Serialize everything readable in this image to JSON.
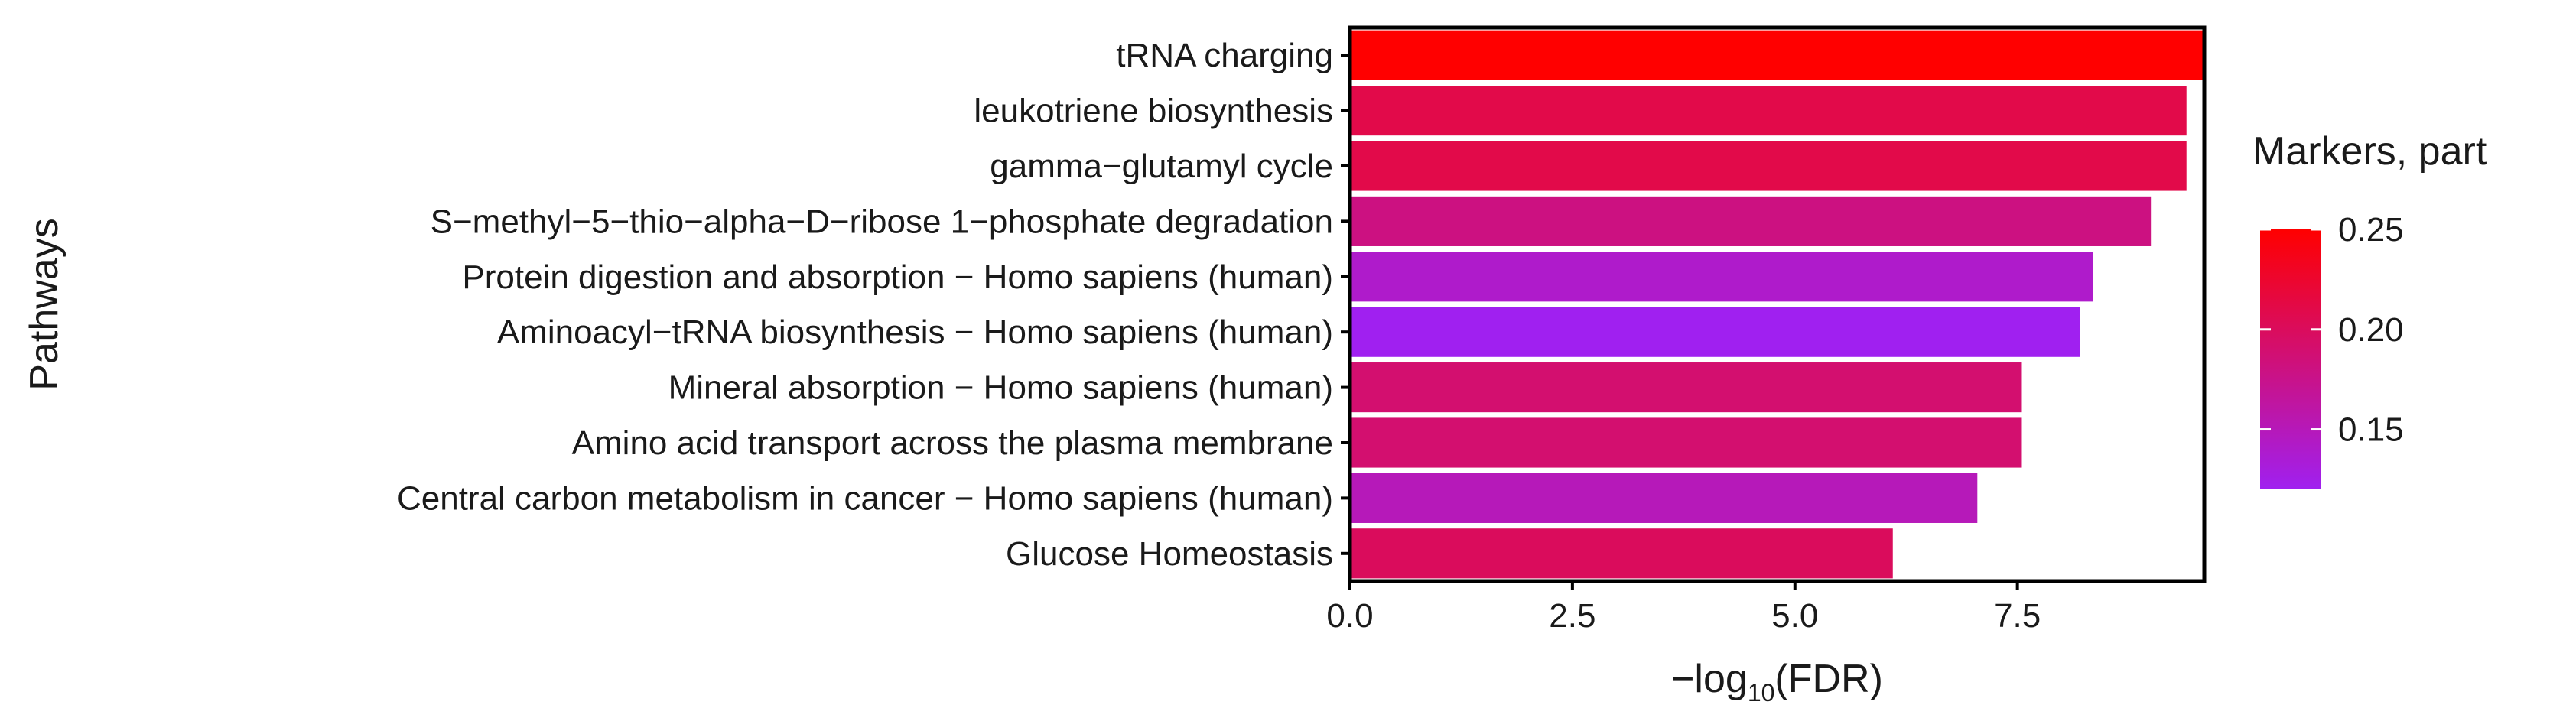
{
  "chart_data": {
    "type": "bar",
    "orientation": "horizontal",
    "categories": [
      "tRNA charging",
      "leukotriene biosynthesis",
      "gamma−glutamyl cycle",
      "S−methyl−5−thio−alpha−D−ribose 1−phosphate degradation",
      "Protein digestion and absorption − Homo sapiens (human)",
      "Aminoacyl−tRNA biosynthesis − Homo sapiens (human)",
      "Mineral absorption − Homo sapiens (human)",
      "Amino acid transport across the plasma membrane",
      "Central carbon metabolism in cancer − Homo sapiens (human)",
      "Glucose Homeostasis"
    ],
    "values": [
      9.6,
      9.4,
      9.4,
      9.0,
      8.35,
      8.2,
      7.55,
      7.55,
      7.05,
      6.1
    ],
    "color_values": [
      0.25,
      0.21,
      0.21,
      0.18,
      0.14,
      0.12,
      0.19,
      0.19,
      0.15,
      0.2
    ],
    "xlabel_main": "−log",
    "xlabel_sub": "10",
    "xlabel_tail": "(FDR)",
    "ylabel": "Pathways",
    "xlim": [
      0,
      9.6
    ],
    "xticks": [
      0,
      2.5,
      5,
      7.5
    ],
    "xtick_labels": [
      "0.0",
      "2.5",
      "5.0",
      "7.5"
    ],
    "grid": false,
    "legend": {
      "title": "Markers, part",
      "placement": "right",
      "range": [
        0.12,
        0.25
      ],
      "ticks": [
        0.15,
        0.2,
        0.25
      ],
      "tick_labels": [
        "0.15",
        "0.20",
        "0.25"
      ],
      "color_low": "#a020f0",
      "color_high": "#ff0000"
    }
  }
}
